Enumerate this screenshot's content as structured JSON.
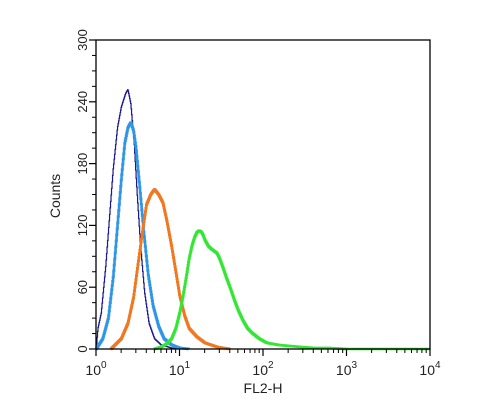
{
  "chart_data": {
    "type": "line",
    "title": "",
    "xlabel": "FL2-H",
    "ylabel": "Counts",
    "xscale": "log",
    "xlim": [
      1,
      10000
    ],
    "ylim": [
      0,
      300
    ],
    "xticks": [
      {
        "value": 1,
        "base": "10",
        "exp": "0"
      },
      {
        "value": 10,
        "base": "10",
        "exp": "1"
      },
      {
        "value": 100,
        "base": "10",
        "exp": "2"
      },
      {
        "value": 1000,
        "base": "10",
        "exp": "3"
      },
      {
        "value": 10000,
        "base": "10",
        "exp": "4"
      }
    ],
    "yticks": [
      "0",
      "60",
      "120",
      "180",
      "240",
      "300"
    ],
    "grid": false,
    "series": [
      {
        "color": "#1a1a8c",
        "stroke": "thin",
        "points": [
          [
            1,
            0
          ],
          [
            1.05,
            20
          ],
          [
            1.15,
            35
          ],
          [
            1.3,
            80
          ],
          [
            1.45,
            130
          ],
          [
            1.6,
            175
          ],
          [
            1.8,
            215
          ],
          [
            2.0,
            235
          ],
          [
            2.25,
            248
          ],
          [
            2.4,
            252
          ],
          [
            2.6,
            238
          ],
          [
            2.85,
            200
          ],
          [
            3.1,
            150
          ],
          [
            3.4,
            100
          ],
          [
            3.8,
            55
          ],
          [
            4.3,
            25
          ],
          [
            5.0,
            10
          ],
          [
            6.0,
            4
          ],
          [
            8.0,
            1
          ],
          [
            10,
            0
          ]
        ]
      },
      {
        "color": "#2f96e6",
        "stroke": "thick",
        "points": [
          [
            1,
            0
          ],
          [
            1.2,
            10
          ],
          [
            1.4,
            30
          ],
          [
            1.6,
            70
          ],
          [
            1.8,
            120
          ],
          [
            2.0,
            165
          ],
          [
            2.2,
            200
          ],
          [
            2.4,
            215
          ],
          [
            2.6,
            220
          ],
          [
            2.8,
            212
          ],
          [
            3.0,
            195
          ],
          [
            3.3,
            160
          ],
          [
            3.7,
            115
          ],
          [
            4.2,
            72
          ],
          [
            4.8,
            42
          ],
          [
            5.6,
            22
          ],
          [
            6.5,
            10
          ],
          [
            8.0,
            4
          ],
          [
            10,
            1
          ],
          [
            13,
            0
          ]
        ]
      },
      {
        "color": "#f07820",
        "stroke": "thick",
        "points": [
          [
            1.5,
            0
          ],
          [
            2.0,
            10
          ],
          [
            2.4,
            25
          ],
          [
            2.8,
            50
          ],
          [
            3.2,
            85
          ],
          [
            3.6,
            115
          ],
          [
            4.0,
            140
          ],
          [
            4.5,
            150
          ],
          [
            5.0,
            155
          ],
          [
            5.6,
            150
          ],
          [
            6.3,
            142
          ],
          [
            7.0,
            125
          ],
          [
            8.0,
            100
          ],
          [
            9.0,
            75
          ],
          [
            10,
            52
          ],
          [
            11.5,
            32
          ],
          [
            13,
            20
          ],
          [
            16,
            12
          ],
          [
            20,
            6
          ],
          [
            28,
            2
          ],
          [
            40,
            0
          ]
        ]
      },
      {
        "color": "#33e633",
        "stroke": "thick",
        "points": [
          [
            5,
            0
          ],
          [
            6,
            2
          ],
          [
            7,
            5
          ],
          [
            8,
            10
          ],
          [
            9,
            20
          ],
          [
            10,
            35
          ],
          [
            11,
            52
          ],
          [
            12,
            70
          ],
          [
            13,
            88
          ],
          [
            14,
            100
          ],
          [
            15,
            108
          ],
          [
            16,
            113
          ],
          [
            17,
            115
          ],
          [
            18,
            114
          ],
          [
            19,
            111
          ],
          [
            20,
            106
          ],
          [
            22,
            100
          ],
          [
            24,
            97
          ],
          [
            26,
            95
          ],
          [
            28,
            93
          ],
          [
            30,
            88
          ],
          [
            33,
            79
          ],
          [
            36,
            70
          ],
          [
            40,
            60
          ],
          [
            45,
            48
          ],
          [
            50,
            38
          ],
          [
            57,
            28
          ],
          [
            65,
            20
          ],
          [
            75,
            15
          ],
          [
            90,
            10
          ],
          [
            110,
            6
          ],
          [
            150,
            4
          ],
          [
            200,
            3
          ],
          [
            280,
            2
          ],
          [
            400,
            1
          ],
          [
            600,
            1
          ],
          [
            1000,
            0
          ],
          [
            3000,
            0
          ],
          [
            10000,
            0
          ]
        ]
      }
    ]
  }
}
